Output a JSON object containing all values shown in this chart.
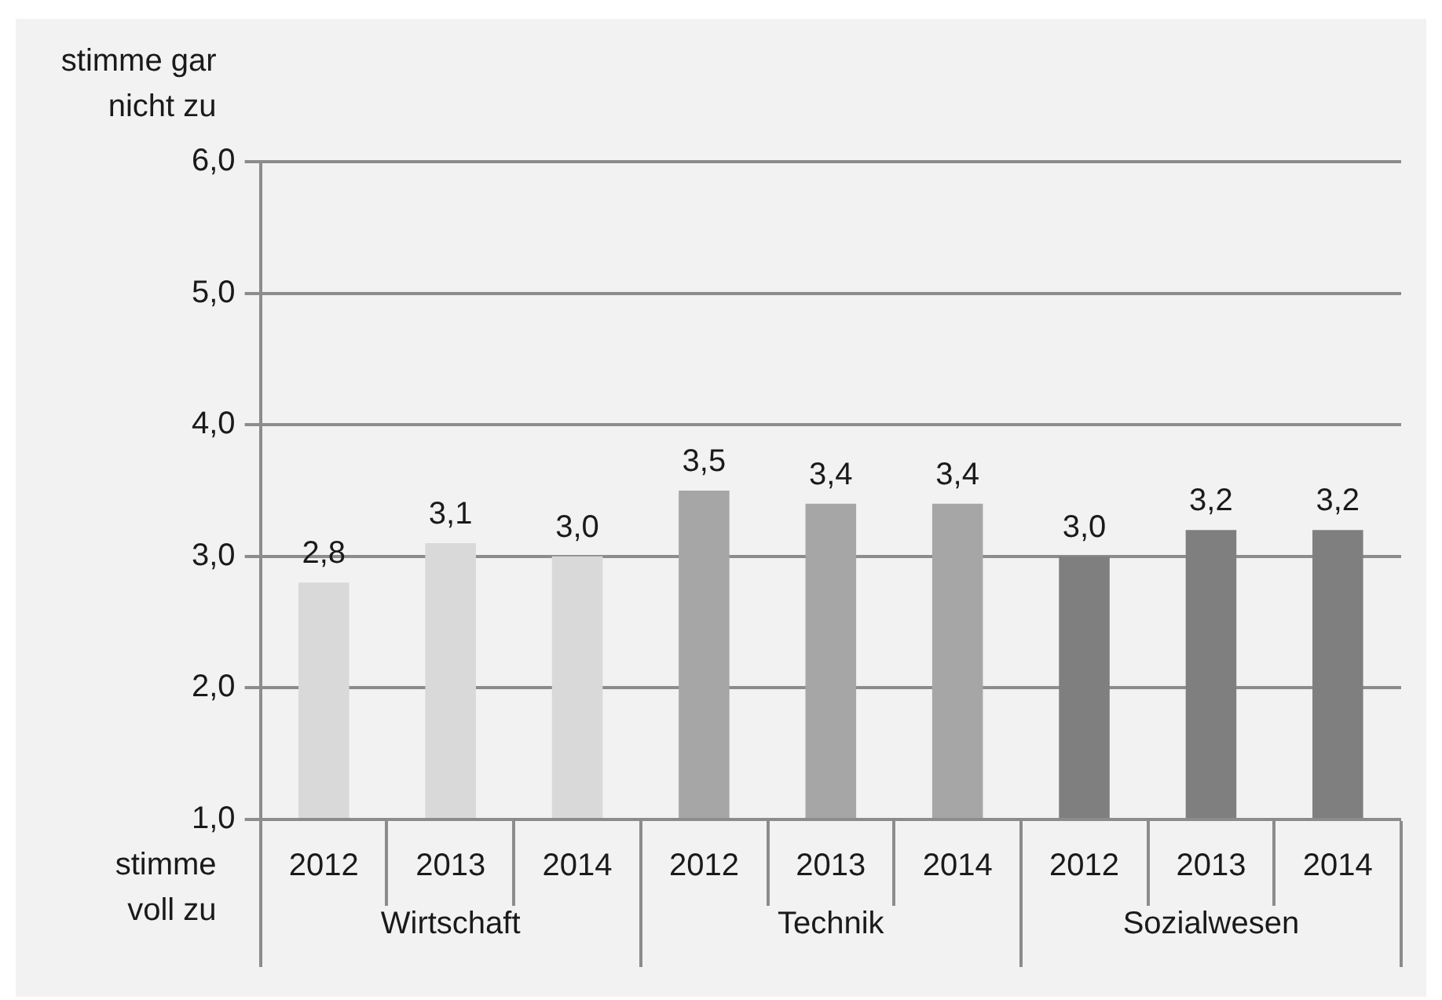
{
  "chart_data": {
    "type": "bar",
    "categories": [
      "2012",
      "2013",
      "2014",
      "2012",
      "2013",
      "2014",
      "2012",
      "2013",
      "2014"
    ],
    "series": [
      {
        "name": "Wirtschaft",
        "color": "#d9d9d9",
        "values": [
          2.8,
          3.1,
          3.0,
          null,
          null,
          null,
          null,
          null,
          null
        ],
        "value_labels": [
          "2,8",
          "3,1",
          "3,0",
          null,
          null,
          null,
          null,
          null,
          null
        ]
      },
      {
        "name": "Technik",
        "color": "#a6a6a6",
        "values": [
          null,
          null,
          null,
          3.5,
          3.4,
          3.4,
          null,
          null,
          null
        ],
        "value_labels": [
          null,
          null,
          null,
          "3,5",
          "3,4",
          "3,4",
          null,
          null,
          null
        ]
      },
      {
        "name": "Sozialwesen",
        "color": "#7f7f7f",
        "values": [
          null,
          null,
          null,
          null,
          null,
          null,
          3.0,
          3.2,
          3.2
        ],
        "value_labels": [
          null,
          null,
          null,
          null,
          null,
          null,
          "3,0",
          "3,2",
          "3,2"
        ]
      }
    ],
    "ylim": [
      1,
      6
    ],
    "yticks": [
      {
        "value": 1,
        "label": "1,0"
      },
      {
        "value": 2,
        "label": "2,0"
      },
      {
        "value": 3,
        "label": "3,0"
      },
      {
        "value": 4,
        "label": "4,0"
      },
      {
        "value": 5,
        "label": "5,0"
      },
      {
        "value": 6,
        "label": "6,0"
      }
    ],
    "grid": "y",
    "legend": false,
    "annotations": [
      "stimme gar nicht zu",
      "stimme voll zu"
    ]
  }
}
